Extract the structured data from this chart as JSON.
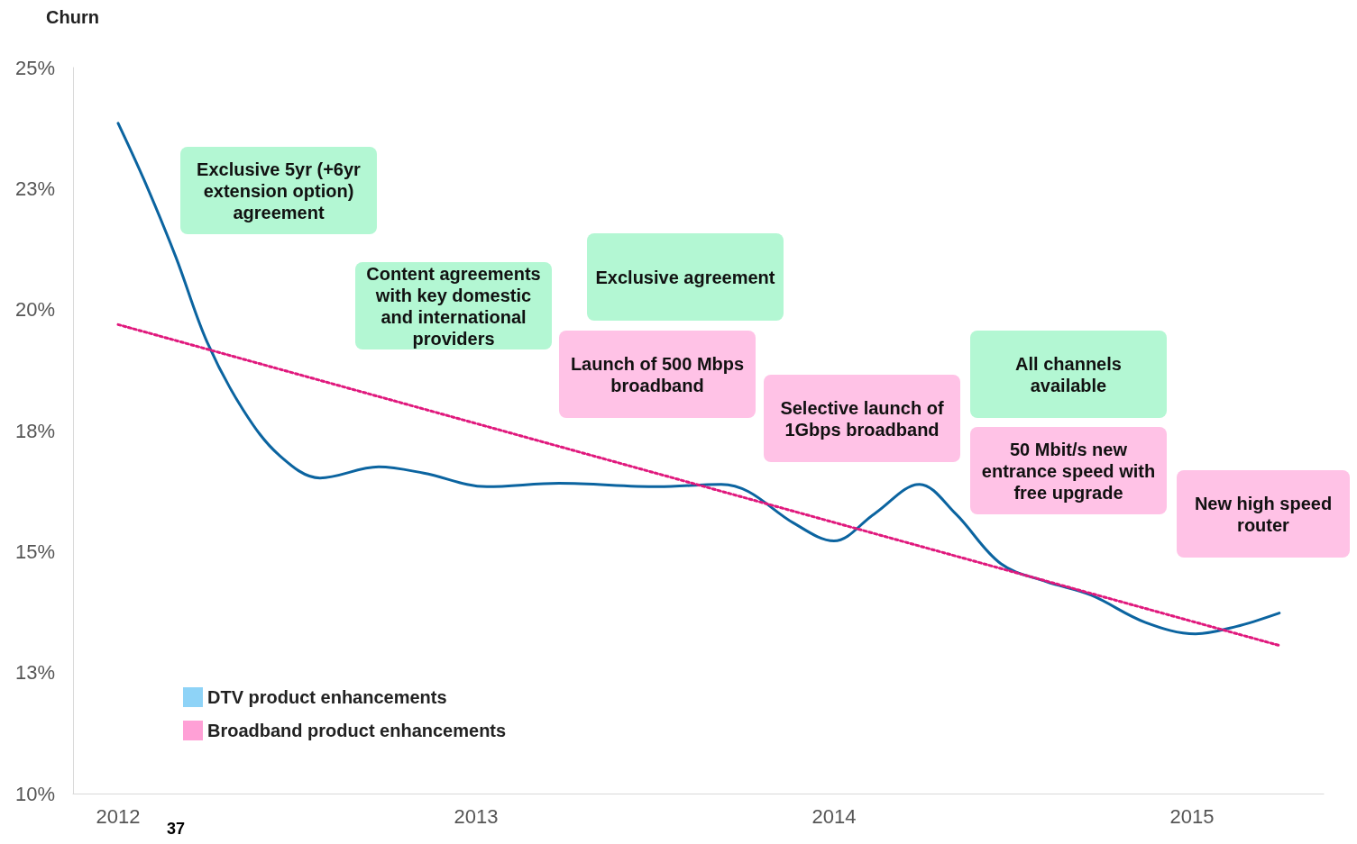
{
  "chart_data": {
    "type": "line",
    "ylabel": "Churn",
    "xlim": [
      2011.874,
      2015.368
    ],
    "xticks": [
      2012,
      2013,
      2014,
      2015
    ],
    "ylim": [
      10,
      25
    ],
    "yticks": [
      {
        "value": 10,
        "label": "10%"
      },
      {
        "value": 12.5,
        "label": "13%"
      },
      {
        "value": 15,
        "label": "15%"
      },
      {
        "value": 17.5,
        "label": "18%"
      },
      {
        "value": 20,
        "label": "20%"
      },
      {
        "value": 22.5,
        "label": "23%"
      },
      {
        "value": 25,
        "label": "25%"
      }
    ],
    "grid": false,
    "legend": "bottom left",
    "marker": "none",
    "annotations": [
      "37",
      "Exclusive 5yr (+6yr extension option) agreement",
      "Content agreements with key domestic and international providers",
      "Exclusive agreement",
      "Launch of 500 Mbps broadband",
      "Selective launch of 1Gbps broadband",
      "All channels available",
      "50 Mbit/s new entrance speed with free upgrade",
      "New high speed router"
    ],
    "series": [
      {
        "color": "#0b64a0",
        "x": [
          2012.0,
          2012.073,
          2012.161,
          2012.249,
          2012.35,
          2012.45,
          2012.564,
          2012.728,
          2012.854,
          2013.03,
          2013.232,
          2013.509,
          2013.685,
          2013.761,
          2013.887,
          2014.0,
          2014.113,
          2014.239,
          2014.34,
          2014.466,
          2014.592,
          2014.718,
          2014.869,
          2015.01,
          2015.123,
          2015.244
        ],
        "values": [
          23.85,
          22.67,
          21.09,
          19.32,
          17.92,
          16.99,
          16.52,
          16.75,
          16.62,
          16.34,
          16.41,
          16.34,
          16.39,
          16.24,
          15.59,
          15.22,
          15.78,
          16.39,
          15.78,
          14.75,
          14.38,
          14.1,
          13.54,
          13.3,
          13.45,
          13.73
        ]
      },
      {
        "color": "#e0197d",
        "line_style": "dotted",
        "x": [
          2012.0,
          2015.244
        ],
        "values": [
          19.69,
          13.06
        ]
      },
      {
        "type": "scatter",
        "name": "DTV product enhancements",
        "color": "#72c8f5"
      },
      {
        "type": "scatter",
        "name": "Broadband product enhancements",
        "color": "#ff88cc"
      }
    ]
  }
}
